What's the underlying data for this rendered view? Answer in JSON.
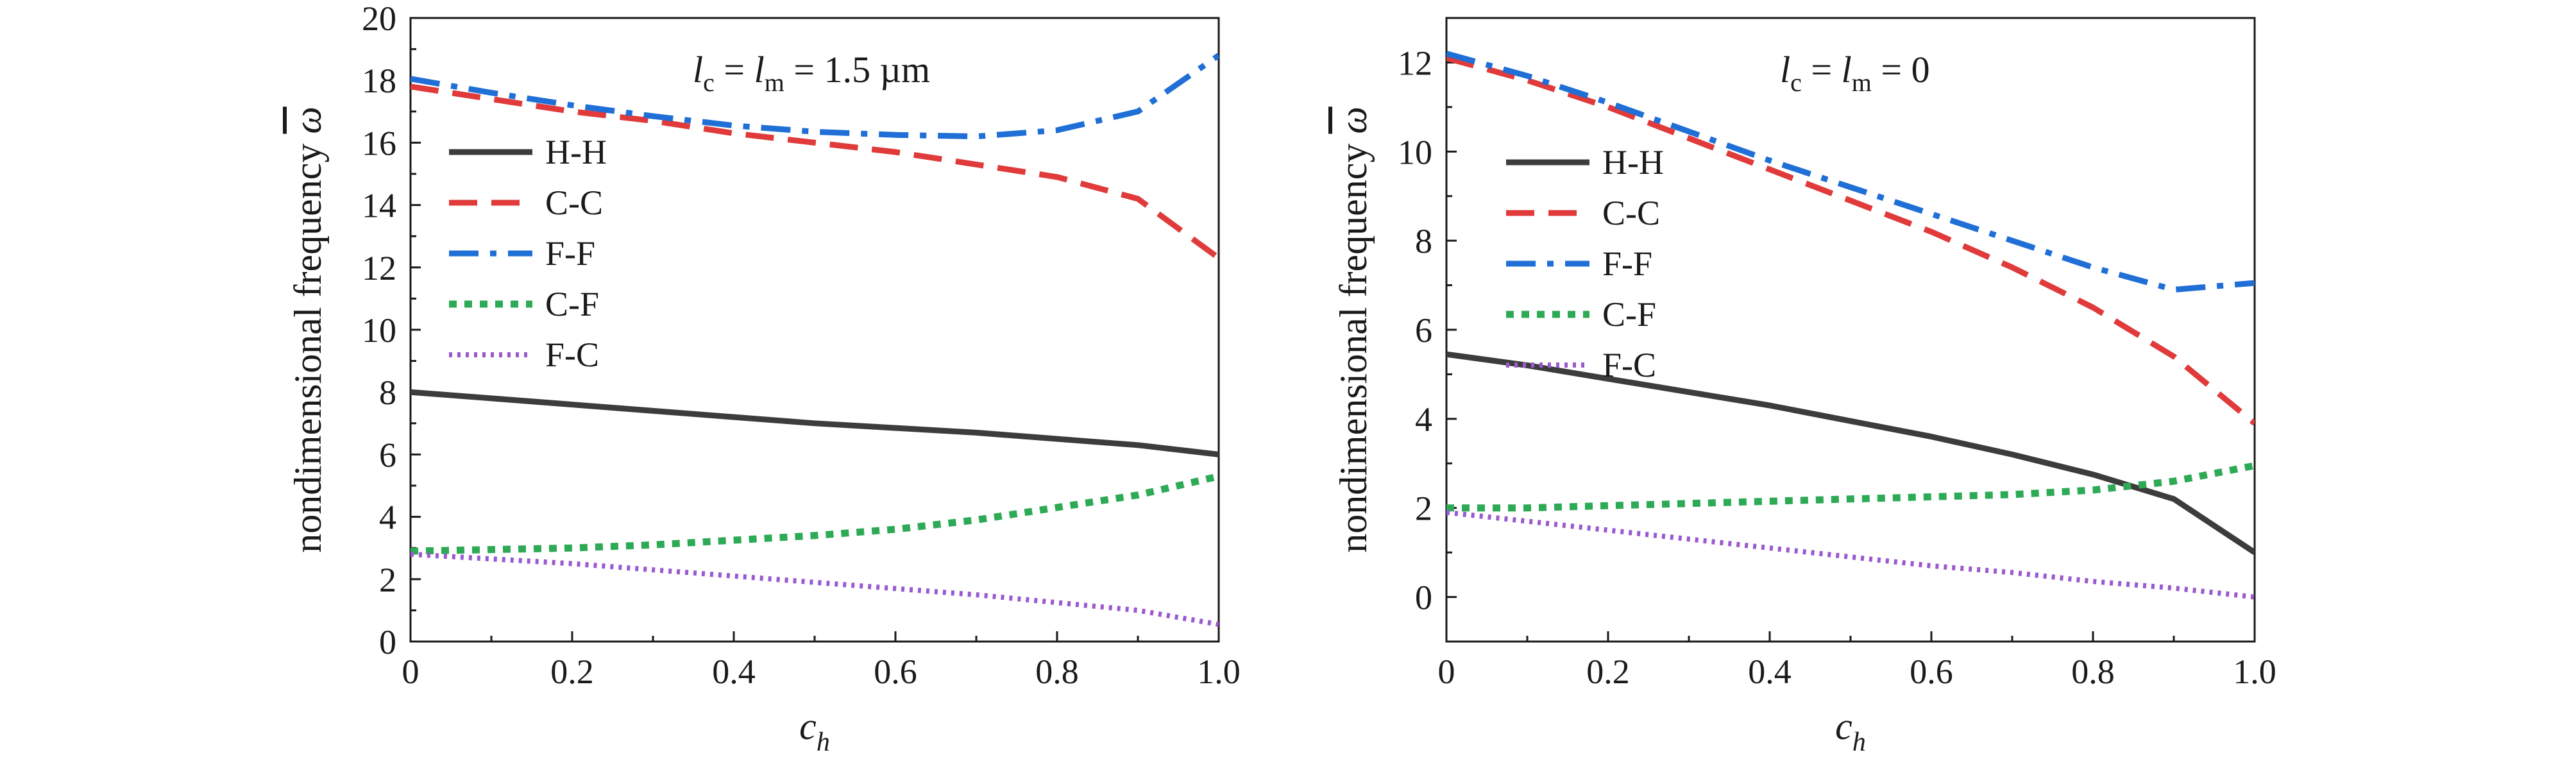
{
  "chart_data": [
    {
      "type": "line",
      "panel": "left",
      "annotation": {
        "l1": "l",
        "s1": "c",
        "eq1": " = ",
        "l2": "l",
        "s2": "m",
        "tail": " = 1.5 µm"
      },
      "xlabel": {
        "main": "c",
        "sub": "h"
      },
      "ylabel": {
        "main": "nondimensional frequency ",
        "symbol": "ω"
      },
      "xlim": [
        0,
        1.0
      ],
      "ylim": [
        0,
        20
      ],
      "xticks": [
        "0",
        "0.2",
        "0.4",
        "0.6",
        "0.8",
        "1.0"
      ],
      "xtick_values": [
        0,
        0.2,
        0.4,
        0.6,
        0.8,
        1.0
      ],
      "yticks": [
        "0",
        "2",
        "4",
        "6",
        "8",
        "10",
        "12",
        "14",
        "16",
        "18",
        "20"
      ],
      "ytick_values": [
        0,
        2,
        4,
        6,
        8,
        10,
        12,
        14,
        16,
        18,
        20
      ],
      "legend_position": "middle-left",
      "x": [
        0,
        0.1,
        0.2,
        0.3,
        0.4,
        0.5,
        0.6,
        0.7,
        0.8,
        0.9,
        1.0
      ],
      "series": [
        {
          "name": "H-H",
          "color": "#3c3c3c",
          "dash": "solid",
          "values": [
            8.0,
            7.8,
            7.6,
            7.4,
            7.2,
            7.0,
            6.85,
            6.7,
            6.5,
            6.3,
            6.0
          ]
        },
        {
          "name": "C-C",
          "color": "#e03a3a",
          "dash": "dashed",
          "values": [
            17.8,
            17.4,
            17.0,
            16.7,
            16.3,
            16.0,
            15.7,
            15.3,
            14.9,
            14.2,
            12.3
          ]
        },
        {
          "name": "F-F",
          "color": "#1f6fd6",
          "dash": "dashdot",
          "values": [
            18.05,
            17.6,
            17.2,
            16.85,
            16.55,
            16.35,
            16.25,
            16.2,
            16.4,
            17.0,
            18.8
          ]
        },
        {
          "name": "C-F",
          "color": "#2eaa57",
          "dash": "dotted",
          "values": [
            2.9,
            2.95,
            3.0,
            3.1,
            3.25,
            3.4,
            3.6,
            3.9,
            4.3,
            4.7,
            5.3
          ]
        },
        {
          "name": "F-C",
          "color": "#9b59d0",
          "dash": "finedotted",
          "values": [
            2.8,
            2.65,
            2.5,
            2.3,
            2.1,
            1.9,
            1.7,
            1.5,
            1.25,
            1.0,
            0.55
          ]
        }
      ]
    },
    {
      "type": "line",
      "panel": "right",
      "annotation": {
        "l1": "l",
        "s1": "c",
        "eq1": " = ",
        "l2": "l",
        "s2": "m",
        "tail": " = 0"
      },
      "xlabel": {
        "main": "c",
        "sub": "h"
      },
      "ylabel": {
        "main": "nondimensional frequency ",
        "symbol": "ω"
      },
      "xlim": [
        0,
        1.0
      ],
      "ylim": [
        -1.0,
        13.0
      ],
      "xticks": [
        "0",
        "0.2",
        "0.4",
        "0.6",
        "0.8",
        "1.0"
      ],
      "xtick_values": [
        0,
        0.2,
        0.4,
        0.6,
        0.8,
        1.0
      ],
      "yticks": [
        "0",
        "2",
        "4",
        "6",
        "8",
        "10",
        "12"
      ],
      "ytick_values": [
        0,
        2,
        4,
        6,
        8,
        10,
        12
      ],
      "legend_position": "middle-left",
      "x": [
        0,
        0.1,
        0.2,
        0.3,
        0.4,
        0.5,
        0.6,
        0.7,
        0.8,
        0.9,
        1.0
      ],
      "series": [
        {
          "name": "H-H",
          "color": "#3c3c3c",
          "dash": "solid",
          "values": [
            5.45,
            5.2,
            4.9,
            4.6,
            4.3,
            3.95,
            3.6,
            3.2,
            2.75,
            2.2,
            1.0
          ]
        },
        {
          "name": "C-C",
          "color": "#e03a3a",
          "dash": "dashed",
          "values": [
            12.1,
            11.6,
            11.0,
            10.3,
            9.6,
            8.9,
            8.2,
            7.4,
            6.5,
            5.4,
            3.9
          ]
        },
        {
          "name": "F-F",
          "color": "#1f6fd6",
          "dash": "dashdot",
          "values": [
            12.2,
            11.7,
            11.1,
            10.45,
            9.8,
            9.2,
            8.6,
            8.0,
            7.4,
            6.9,
            7.05
          ]
        },
        {
          "name": "C-F",
          "color": "#2eaa57",
          "dash": "dotted",
          "values": [
            2.0,
            2.0,
            2.05,
            2.1,
            2.15,
            2.2,
            2.25,
            2.3,
            2.4,
            2.6,
            2.95
          ]
        },
        {
          "name": "F-C",
          "color": "#9b59d0",
          "dash": "finedotted",
          "values": [
            1.9,
            1.7,
            1.5,
            1.3,
            1.1,
            0.9,
            0.7,
            0.55,
            0.35,
            0.2,
            0.0
          ]
        }
      ]
    }
  ]
}
